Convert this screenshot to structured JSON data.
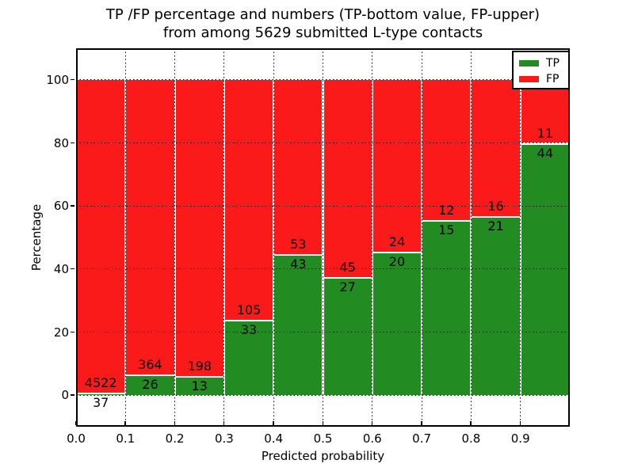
{
  "title": {
    "line1": "TP /FP percentage and numbers (TP-bottom value, FP-upper)",
    "line2": "from among 5629 submitted L-type contacts"
  },
  "axes": {
    "x_label": "Predicted probability",
    "y_label": "Percentage",
    "x_tick_labels": [
      "0.0",
      "0.1",
      "0.2",
      "0.3",
      "0.4",
      "0.5",
      "0.6",
      "0.7",
      "0.8",
      "0.9"
    ],
    "y_tick_labels": [
      "0",
      "20",
      "40",
      "60",
      "80",
      "100"
    ],
    "y_tick_values": [
      0,
      20,
      40,
      60,
      80,
      100
    ]
  },
  "legend": {
    "position": "upper-right",
    "items": [
      {
        "label": "TP",
        "color": "#228B22"
      },
      {
        "label": "FP",
        "color": "#FA1A1A"
      }
    ]
  },
  "colors": {
    "tp_green": "#228B22",
    "fp_red": "#FA1A1A",
    "grid": "#000000",
    "bar_edge": "#FFFFFF",
    "background": "#FFFFFF",
    "text": "#000000"
  },
  "chart_data": {
    "type": "bar",
    "stacked": true,
    "normalized": "each bin stacked to 100%",
    "title": "TP /FP percentage and numbers (TP-bottom value, FP-upper) from among 5629 submitted L-type contacts",
    "xlabel": "Predicted probability",
    "ylabel": "Percentage",
    "xlim": [
      0.0,
      1.0
    ],
    "ylim": [
      -10,
      110
    ],
    "grid": true,
    "legend_position": "upper right",
    "total_contacts": 5629,
    "bin_edges": [
      0.0,
      0.1,
      0.2,
      0.3,
      0.4,
      0.5,
      0.6,
      0.7,
      0.8,
      0.9,
      1.0
    ],
    "categories": [
      "0.0-0.1",
      "0.1-0.2",
      "0.2-0.3",
      "0.3-0.4",
      "0.4-0.5",
      "0.5-0.6",
      "0.6-0.7",
      "0.7-0.8",
      "0.8-0.9",
      "0.9-1.0"
    ],
    "series": [
      {
        "name": "TP",
        "color": "#228B22",
        "counts": [
          37,
          26,
          13,
          33,
          43,
          27,
          20,
          15,
          21,
          44
        ]
      },
      {
        "name": "FP",
        "color": "#FA1A1A",
        "counts": [
          4522,
          364,
          198,
          105,
          53,
          45,
          24,
          12,
          16,
          11
        ]
      }
    ],
    "tp_percent_of_bin": [
      0.81,
      6.67,
      6.16,
      23.91,
      44.79,
      37.5,
      45.45,
      55.56,
      56.76,
      80.0
    ]
  }
}
